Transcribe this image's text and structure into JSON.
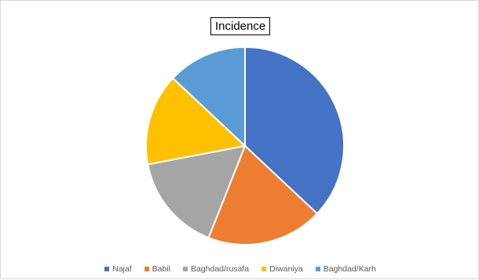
{
  "chart_data": {
    "type": "pie",
    "title": "Incidence",
    "categories": [
      "Najaf",
      "Babil",
      "Baghdad/rusafa",
      "Diwaniya",
      "Baghdad/Karh"
    ],
    "values": [
      37,
      19,
      16,
      15,
      13
    ],
    "colors": [
      "#4472C4",
      "#ED7D31",
      "#A5A5A5",
      "#FFC000",
      "#5B9BD5"
    ],
    "start_angle_deg": 0,
    "direction": "clockwise",
    "legend_position": "bottom"
  }
}
